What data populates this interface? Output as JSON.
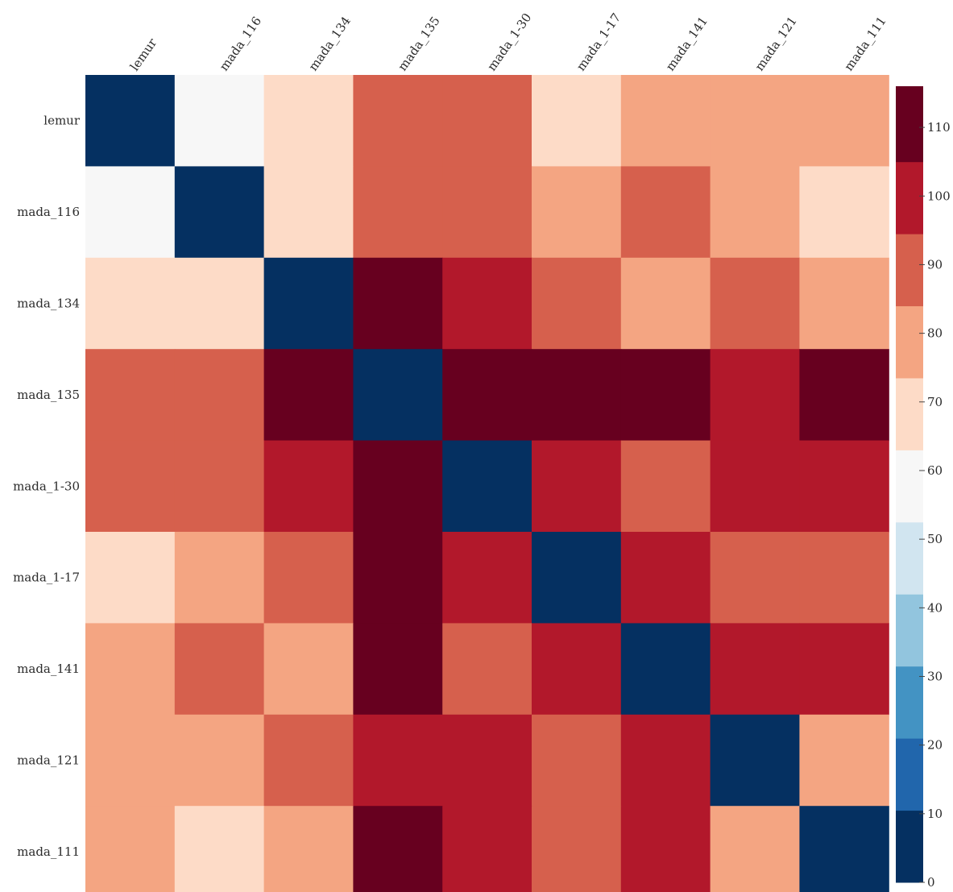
{
  "chart_data": {
    "type": "heatmap",
    "title": "",
    "xlabel": "",
    "ylabel": "",
    "categories": [
      "lemur",
      "mada_116",
      "mada_134",
      "mada_135",
      "mada_1-30",
      "mada_1-17",
      "mada_141",
      "mada_121",
      "mada_111"
    ],
    "rows": [
      "lemur",
      "mada_116",
      "mada_134",
      "mada_135",
      "mada_1-30",
      "mada_1-17",
      "mada_141",
      "mada_121",
      "mada_111"
    ],
    "values": [
      [
        0,
        58,
        68,
        88,
        88,
        68,
        78,
        78,
        78
      ],
      [
        58,
        0,
        68,
        88,
        88,
        78,
        88,
        78,
        68
      ],
      [
        68,
        68,
        0,
        112,
        98,
        88,
        78,
        88,
        78
      ],
      [
        88,
        88,
        112,
        0,
        112,
        112,
        112,
        98,
        112
      ],
      [
        88,
        88,
        98,
        112,
        0,
        98,
        88,
        98,
        98
      ],
      [
        68,
        78,
        88,
        112,
        98,
        0,
        98,
        88,
        88
      ],
      [
        78,
        88,
        78,
        112,
        88,
        98,
        0,
        98,
        98
      ],
      [
        78,
        78,
        88,
        98,
        98,
        88,
        98,
        0,
        78
      ],
      [
        78,
        68,
        78,
        112,
        98,
        88,
        98,
        78,
        0
      ]
    ],
    "colorbar": {
      "range": [
        0,
        116
      ],
      "boundaries": [
        0,
        10.5,
        21,
        31.5,
        42,
        52.5,
        63,
        73.5,
        84,
        94.5,
        105,
        116
      ],
      "colors": [
        "#053061",
        "#2166ac",
        "#4393c3",
        "#92c5de",
        "#d1e5f0",
        "#f7f7f7",
        "#fddbc7",
        "#f4a582",
        "#d6604d",
        "#b2182b",
        "#67001f"
      ],
      "ticks": [
        0,
        10,
        20,
        30,
        40,
        50,
        60,
        70,
        80,
        90,
        100,
        110
      ]
    },
    "grid": false,
    "legend": "right"
  }
}
